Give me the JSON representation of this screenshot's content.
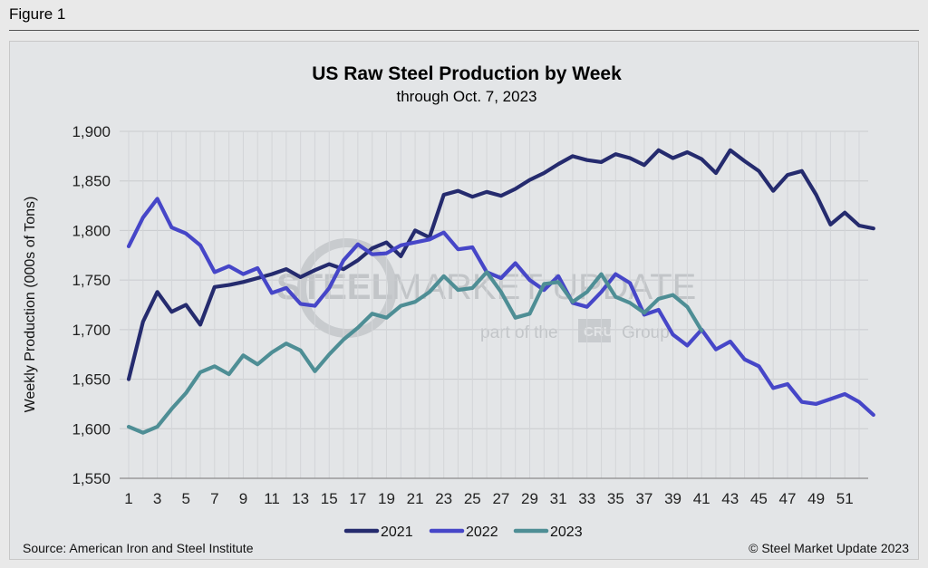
{
  "figure_label": "Figure 1",
  "footer": {
    "source": "Source: American Iron and Steel Institute",
    "copyright": "© Steel Market Update 2023"
  },
  "watermark": {
    "line1a": "STEEL",
    "line1b": "MARKET UPDATE",
    "line2a": "part of the",
    "line2b": "CRU",
    "line2c": "Group"
  },
  "chart_data": {
    "type": "line",
    "title": "US Raw Steel Production by Week",
    "subtitle": "through Oct. 7, 2023",
    "ylabel": "Weekly Production (000s of Tons)",
    "xlabel": "",
    "ylim": [
      1550,
      1900
    ],
    "yticks": [
      1550,
      1600,
      1650,
      1700,
      1750,
      1800,
      1850,
      1900
    ],
    "ytick_labels": [
      "1,550",
      "1,600",
      "1,650",
      "1,700",
      "1,750",
      "1,800",
      "1,850",
      "1,900"
    ],
    "xlim": [
      1,
      52
    ],
    "xticks": [
      1,
      3,
      5,
      7,
      9,
      11,
      13,
      15,
      17,
      19,
      21,
      23,
      25,
      27,
      29,
      31,
      33,
      35,
      37,
      39,
      41,
      43,
      45,
      47,
      49,
      51
    ],
    "grid": true,
    "legend_position": "bottom",
    "series": [
      {
        "name": "2021",
        "color": "#252b6e",
        "values": [
          1650,
          1708,
          1738,
          1718,
          1725,
          1705,
          1743,
          1745,
          1748,
          1752,
          1756,
          1761,
          1753,
          1760,
          1766,
          1761,
          1770,
          1782,
          1788,
          1774,
          1800,
          1793,
          1836,
          1840,
          1834,
          1839,
          1835,
          1842,
          1851,
          1858,
          1867,
          1875,
          1871,
          1869,
          1877,
          1873,
          1866,
          1881,
          1873,
          1879,
          1872,
          1858,
          1881,
          1870,
          1860,
          1840,
          1856,
          1860,
          1836,
          1806,
          1818,
          1805,
          1802
        ]
      },
      {
        "name": "2022",
        "color": "#4646c8",
        "values": [
          1784,
          1813,
          1832,
          1803,
          1797,
          1785,
          1758,
          1764,
          1756,
          1762,
          1737,
          1742,
          1726,
          1724,
          1742,
          1770,
          1786,
          1776,
          1777,
          1785,
          1788,
          1791,
          1798,
          1781,
          1783,
          1758,
          1752,
          1767,
          1750,
          1740,
          1754,
          1727,
          1723,
          1738,
          1756,
          1747,
          1715,
          1720,
          1695,
          1684,
          1700,
          1680,
          1688,
          1670,
          1663,
          1641,
          1645,
          1627,
          1625,
          1630,
          1635,
          1627,
          1614
        ]
      },
      {
        "name": "2023",
        "color": "#4e8e95",
        "values": [
          1602,
          1596,
          1602,
          1620,
          1636,
          1657,
          1663,
          1655,
          1674,
          1665,
          1677,
          1686,
          1679,
          1658,
          1675,
          1690,
          1702,
          1716,
          1712,
          1724,
          1728,
          1738,
          1754,
          1740,
          1742,
          1758,
          1738,
          1712,
          1716,
          1746,
          1748,
          1728,
          1738,
          1756,
          1733,
          1727,
          1717,
          1731,
          1735,
          1723,
          1699
        ]
      }
    ]
  }
}
